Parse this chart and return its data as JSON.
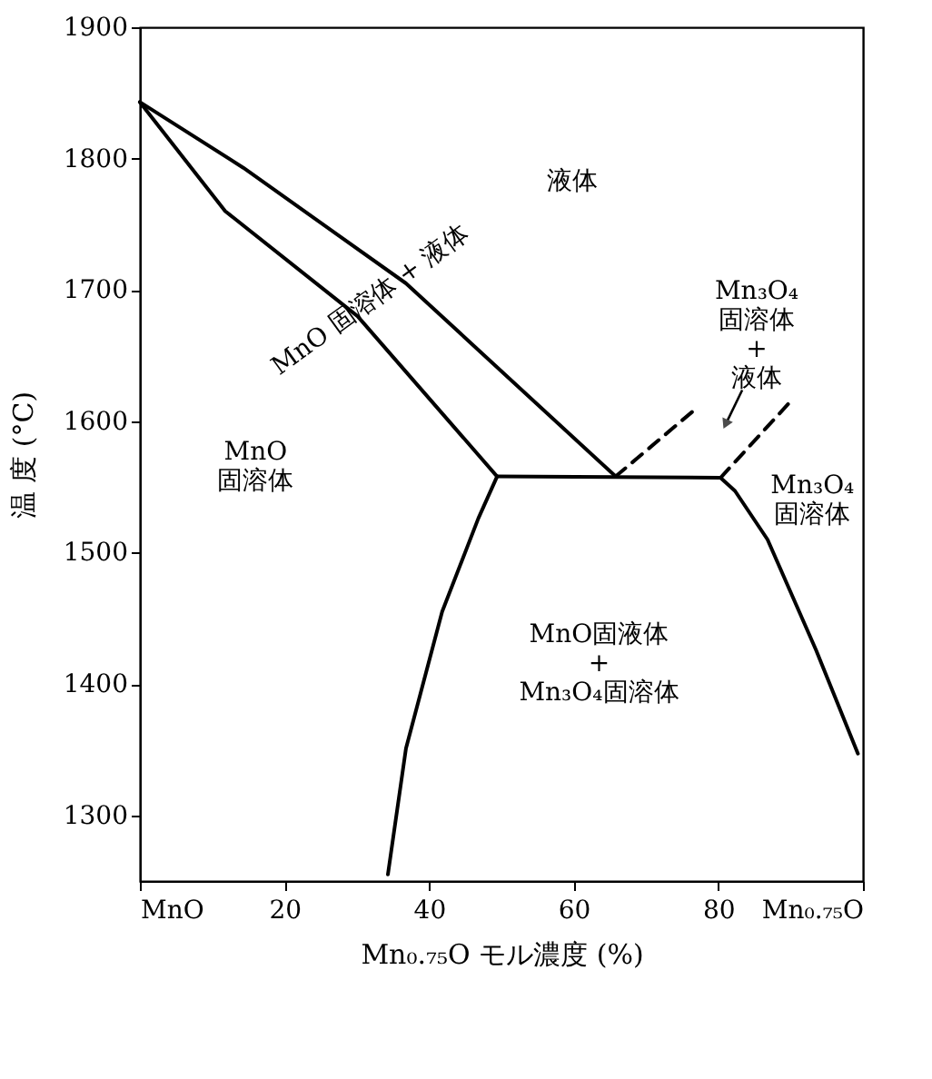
{
  "chart_data": {
    "type": "line",
    "xlabel": "Mn₀.₇₅O モル濃度 (%)",
    "ylabel": "温 度 (°C)",
    "xlim": [
      0,
      100
    ],
    "ylim": [
      1250,
      1900
    ],
    "xticks": [
      {
        "value": 0,
        "label": "MnO"
      },
      20,
      40,
      60,
      80,
      {
        "value": 100,
        "label": "Mn₀.₇₅O"
      }
    ],
    "yticks": [
      1300,
      1400,
      1500,
      1600,
      1700,
      1800,
      1900
    ],
    "grid": false,
    "marker": "none",
    "series": [
      {
        "color": "#000000",
        "line_style": "solid",
        "x": [
          0,
          14.3,
          36.8,
          65.8
        ],
        "values": [
          1843,
          1793,
          1705,
          1558
        ]
      },
      {
        "color": "#000000",
        "line_style": "solid",
        "x": [
          0,
          11.8,
          30.1,
          49.4
        ],
        "values": [
          1843,
          1760,
          1680,
          1558
        ]
      },
      {
        "color": "#000000",
        "line_style": "solid",
        "x": [
          49.4,
          80.3
        ],
        "values": [
          1558,
          1557
        ]
      },
      {
        "color": "#000000",
        "line_style": "solid",
        "x": [
          49.4,
          46.8,
          41.8,
          36.8,
          34.3
        ],
        "values": [
          1558,
          1526,
          1455,
          1351,
          1255
        ]
      },
      {
        "color": "#000000",
        "line_style": "solid",
        "x": [
          80.3,
          82.3,
          86.8,
          93.5,
          99.3
        ],
        "values": [
          1557,
          1547,
          1510,
          1426,
          1347
        ]
      },
      {
        "color": "#000000",
        "line_style": "dashed",
        "x": [
          65.8,
          77.2
        ],
        "values": [
          1558,
          1611
        ]
      },
      {
        "color": "#000000",
        "line_style": "dashed",
        "x": [
          80.3,
          89.8
        ],
        "values": [
          1557,
          1614
        ]
      }
    ],
    "annotations": [
      "液体",
      "MnO 固溶体 + 液体",
      "MnO\n固溶体",
      "Mn₃O₄\n固溶体\n+\n液体",
      "Mn₃O₄\n固溶体",
      "MnO固液体\n+\nMn₃O₄固溶体"
    ]
  }
}
